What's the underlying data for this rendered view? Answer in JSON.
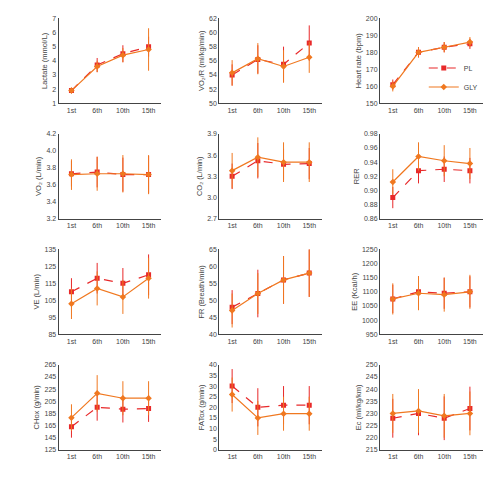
{
  "chart_data": [
    {
      "type": "line",
      "ylabel": "Lactate (mmol/L)",
      "categories": [
        "1st",
        "6th",
        "10th",
        "15th"
      ],
      "ylim": [
        1.0,
        7.0
      ],
      "yticks": [
        1.0,
        2.0,
        3.0,
        4.0,
        5.0,
        6.0,
        7.0
      ],
      "grid": false,
      "series": [
        {
          "name": "PL",
          "color": "#E8292A",
          "marker": "square",
          "line_style": "dashed",
          "values": [
            1.9,
            3.7,
            4.5,
            5.0
          ],
          "errors": [
            0.2,
            0.5,
            0.6,
            0.7
          ]
        },
        {
          "name": "GLY",
          "color": "#F07820",
          "marker": "diamond",
          "line_style": "solid",
          "values": [
            1.9,
            3.6,
            4.4,
            4.8
          ],
          "errors": [
            0.2,
            0.4,
            0.5,
            1.5
          ]
        }
      ]
    },
    {
      "type": "line",
      "ylabel": "VO₂/R (ml/kg/min)",
      "categories": [
        "1st",
        "6th",
        "10th",
        "15th"
      ],
      "ylim": [
        50,
        62
      ],
      "yticks": [
        50,
        52,
        54,
        56,
        58,
        60,
        62
      ],
      "grid": false,
      "series": [
        {
          "name": "PL",
          "color": "#E8292A",
          "marker": "square",
          "line_style": "dashed",
          "values": [
            54.0,
            56.2,
            55.5,
            58.5
          ],
          "errors": [
            1.5,
            2.0,
            2.5,
            2.5
          ]
        },
        {
          "name": "GLY",
          "color": "#F07820",
          "marker": "diamond",
          "line_style": "solid",
          "values": [
            54.3,
            56.3,
            55.2,
            56.5
          ],
          "errors": [
            1.8,
            2.2,
            2.3,
            2.2
          ]
        }
      ]
    },
    {
      "type": "line",
      "ylabel": "Heart rate (bpm)",
      "categories": [
        "1st",
        "6th",
        "10th",
        "15th"
      ],
      "ylim": [
        150,
        200
      ],
      "yticks": [
        150,
        160,
        170,
        180,
        190,
        200
      ],
      "grid": false,
      "legend": "lower right",
      "series": [
        {
          "name": "PL",
          "color": "#E8292A",
          "marker": "square",
          "line_style": "dashed",
          "values": [
            161,
            180,
            183,
            185
          ],
          "errors": [
            3,
            3,
            3,
            3
          ]
        },
        {
          "name": "GLY",
          "color": "#F07820",
          "marker": "diamond",
          "line_style": "solid",
          "values": [
            160,
            180,
            183,
            186
          ],
          "errors": [
            3,
            3,
            3,
            3
          ]
        }
      ]
    },
    {
      "type": "line",
      "ylabel": "VO₂ (L/min)",
      "categories": [
        "1st",
        "6th",
        "10th",
        "15th"
      ],
      "ylim": [
        3.2,
        4.2
      ],
      "yticks": [
        3.2,
        3.4,
        3.6,
        3.8,
        {
          "value": 4.0,
          "label": "4.0"
        },
        4.2
      ],
      "grid": false,
      "series": [
        {
          "name": "PL",
          "color": "#E8292A",
          "marker": "square",
          "line_style": "dashed",
          "values": [
            3.73,
            3.75,
            3.72,
            3.72
          ],
          "errors": [
            0.15,
            0.18,
            0.2,
            0.22
          ]
        },
        {
          "name": "GLY",
          "color": "#F07820",
          "marker": "diamond",
          "line_style": "solid",
          "values": [
            3.72,
            3.73,
            3.73,
            3.72
          ],
          "errors": [
            0.18,
            0.2,
            0.22,
            0.23
          ]
        }
      ]
    },
    {
      "type": "line",
      "ylabel": "CO₂ (L/min)",
      "categories": [
        "1st",
        "6th",
        "10th",
        "15th"
      ],
      "ylim": [
        2.7,
        3.9
      ],
      "yticks": [
        2.7,
        {
          "value": 3.0,
          "label": "3.0"
        },
        3.3,
        3.6,
        3.9
      ],
      "grid": false,
      "series": [
        {
          "name": "PL",
          "color": "#E8292A",
          "marker": "square",
          "line_style": "dashed",
          "values": [
            3.3,
            3.52,
            3.47,
            3.48
          ],
          "errors": [
            0.18,
            0.25,
            0.22,
            0.22
          ]
        },
        {
          "name": "GLY",
          "color": "#F07820",
          "marker": "diamond",
          "line_style": "solid",
          "values": [
            3.38,
            3.57,
            3.5,
            3.5
          ],
          "errors": [
            0.25,
            0.28,
            0.28,
            0.28
          ]
        }
      ]
    },
    {
      "type": "line",
      "ylabel": "RER",
      "categories": [
        "1st",
        "6th",
        "10th",
        "15th"
      ],
      "ylim": [
        0.86,
        0.98
      ],
      "yticks": [
        0.86,
        0.88,
        {
          "value": 0.9,
          "label": "0.90"
        },
        0.92,
        0.94,
        0.96,
        0.98
      ],
      "grid": false,
      "series": [
        {
          "name": "PL",
          "color": "#E8292A",
          "marker": "square",
          "line_style": "dashed",
          "values": [
            0.89,
            0.928,
            0.93,
            0.928
          ],
          "errors": [
            0.015,
            0.018,
            0.018,
            0.018
          ]
        },
        {
          "name": "GLY",
          "color": "#F07820",
          "marker": "diamond",
          "line_style": "solid",
          "values": [
            0.912,
            0.948,
            0.942,
            0.938
          ],
          "errors": [
            0.018,
            0.02,
            0.022,
            0.022
          ]
        }
      ]
    },
    {
      "type": "line",
      "ylabel": "VE (L/min)",
      "categories": [
        "1st",
        "6th",
        "10th",
        "15th"
      ],
      "ylim": [
        85,
        135
      ],
      "yticks": [
        85,
        95,
        105,
        115,
        125,
        135
      ],
      "grid": false,
      "series": [
        {
          "name": "PL",
          "color": "#E8292A",
          "marker": "square",
          "line_style": "dashed",
          "values": [
            110,
            118,
            115,
            120
          ],
          "errors": [
            8,
            9,
            9,
            12
          ]
        },
        {
          "name": "GLY",
          "color": "#F07820",
          "marker": "diamond",
          "line_style": "solid",
          "values": [
            103,
            112,
            107,
            118
          ],
          "errors": [
            9,
            10,
            10,
            12
          ]
        }
      ]
    },
    {
      "type": "line",
      "ylabel": "FR (Breath/min)",
      "categories": [
        "1st",
        "6th",
        "10th",
        "15th"
      ],
      "ylim": [
        40,
        65
      ],
      "yticks": [
        40,
        45,
        50,
        55,
        60,
        65
      ],
      "grid": false,
      "series": [
        {
          "name": "PL",
          "color": "#E8292A",
          "marker": "square",
          "line_style": "dashed",
          "values": [
            48,
            52,
            56,
            58
          ],
          "errors": [
            5,
            7,
            7,
            7
          ]
        },
        {
          "name": "GLY",
          "color": "#F07820",
          "marker": "diamond",
          "line_style": "solid",
          "values": [
            47,
            52,
            56,
            58
          ],
          "errors": [
            5,
            6,
            7,
            7
          ]
        }
      ]
    },
    {
      "type": "line",
      "ylabel": "EE (Kcal/h)",
      "categories": [
        "1st",
        "6th",
        "10th",
        "15th"
      ],
      "ylim": [
        950,
        1250
      ],
      "yticks": [
        950,
        1000,
        1050,
        1100,
        1150,
        1200,
        1250
      ],
      "grid": false,
      "series": [
        {
          "name": "PL",
          "color": "#E8292A",
          "marker": "square",
          "line_style": "dashed",
          "values": [
            1075,
            1100,
            1095,
            1100
          ],
          "errors": [
            50,
            55,
            55,
            55
          ]
        },
        {
          "name": "GLY",
          "color": "#F07820",
          "marker": "diamond",
          "line_style": "solid",
          "values": [
            1075,
            1095,
            1090,
            1100
          ],
          "errors": [
            55,
            60,
            60,
            60
          ]
        }
      ]
    },
    {
      "type": "line",
      "ylabel": "CHox (g/min)",
      "categories": [
        "1st",
        "6th",
        "10th",
        "15th"
      ],
      "ylim": [
        125,
        265
      ],
      "yticks": [
        125,
        145,
        165,
        185,
        205,
        225,
        245,
        265
      ],
      "grid": false,
      "series": [
        {
          "name": "PL",
          "color": "#E8292A",
          "marker": "square",
          "line_style": "dashed",
          "values": [
            163,
            195,
            192,
            193
          ],
          "errors": [
            18,
            22,
            22,
            22
          ]
        },
        {
          "name": "GLY",
          "color": "#F07820",
          "marker": "diamond",
          "line_style": "solid",
          "values": [
            178,
            218,
            210,
            210
          ],
          "errors": [
            22,
            30,
            28,
            28
          ]
        }
      ]
    },
    {
      "type": "line",
      "ylabel": "FATox (g/min)",
      "categories": [
        "1st",
        "6th",
        "10th",
        "15th"
      ],
      "ylim": [
        0,
        40
      ],
      "yticks": [
        0,
        5,
        10,
        15,
        20,
        25,
        30,
        35,
        40
      ],
      "grid": false,
      "series": [
        {
          "name": "PL",
          "color": "#E8292A",
          "marker": "square",
          "line_style": "dashed",
          "values": [
            30,
            20,
            21,
            21
          ],
          "errors": [
            8,
            9,
            9,
            9
          ]
        },
        {
          "name": "GLY",
          "color": "#F07820",
          "marker": "diamond",
          "line_style": "solid",
          "values": [
            26,
            15,
            17,
            17
          ],
          "errors": [
            8,
            8,
            8,
            8
          ]
        }
      ]
    },
    {
      "type": "line",
      "ylabel": "Ec (ml/kg/km)",
      "categories": [
        "1st",
        "6th",
        "10th",
        "15th"
      ],
      "ylim": [
        215,
        250
      ],
      "yticks": [
        215,
        220,
        225,
        230,
        235,
        240,
        245,
        250
      ],
      "grid": false,
      "series": [
        {
          "name": "PL",
          "color": "#E8292A",
          "marker": "square",
          "line_style": "dashed",
          "values": [
            228,
            230,
            228,
            232
          ],
          "errors": [
            8,
            9,
            9,
            9
          ]
        },
        {
          "name": "GLY",
          "color": "#F07820",
          "marker": "diamond",
          "line_style": "solid",
          "values": [
            230,
            231,
            229,
            230
          ],
          "errors": [
            8,
            9,
            9,
            9
          ]
        }
      ]
    }
  ]
}
